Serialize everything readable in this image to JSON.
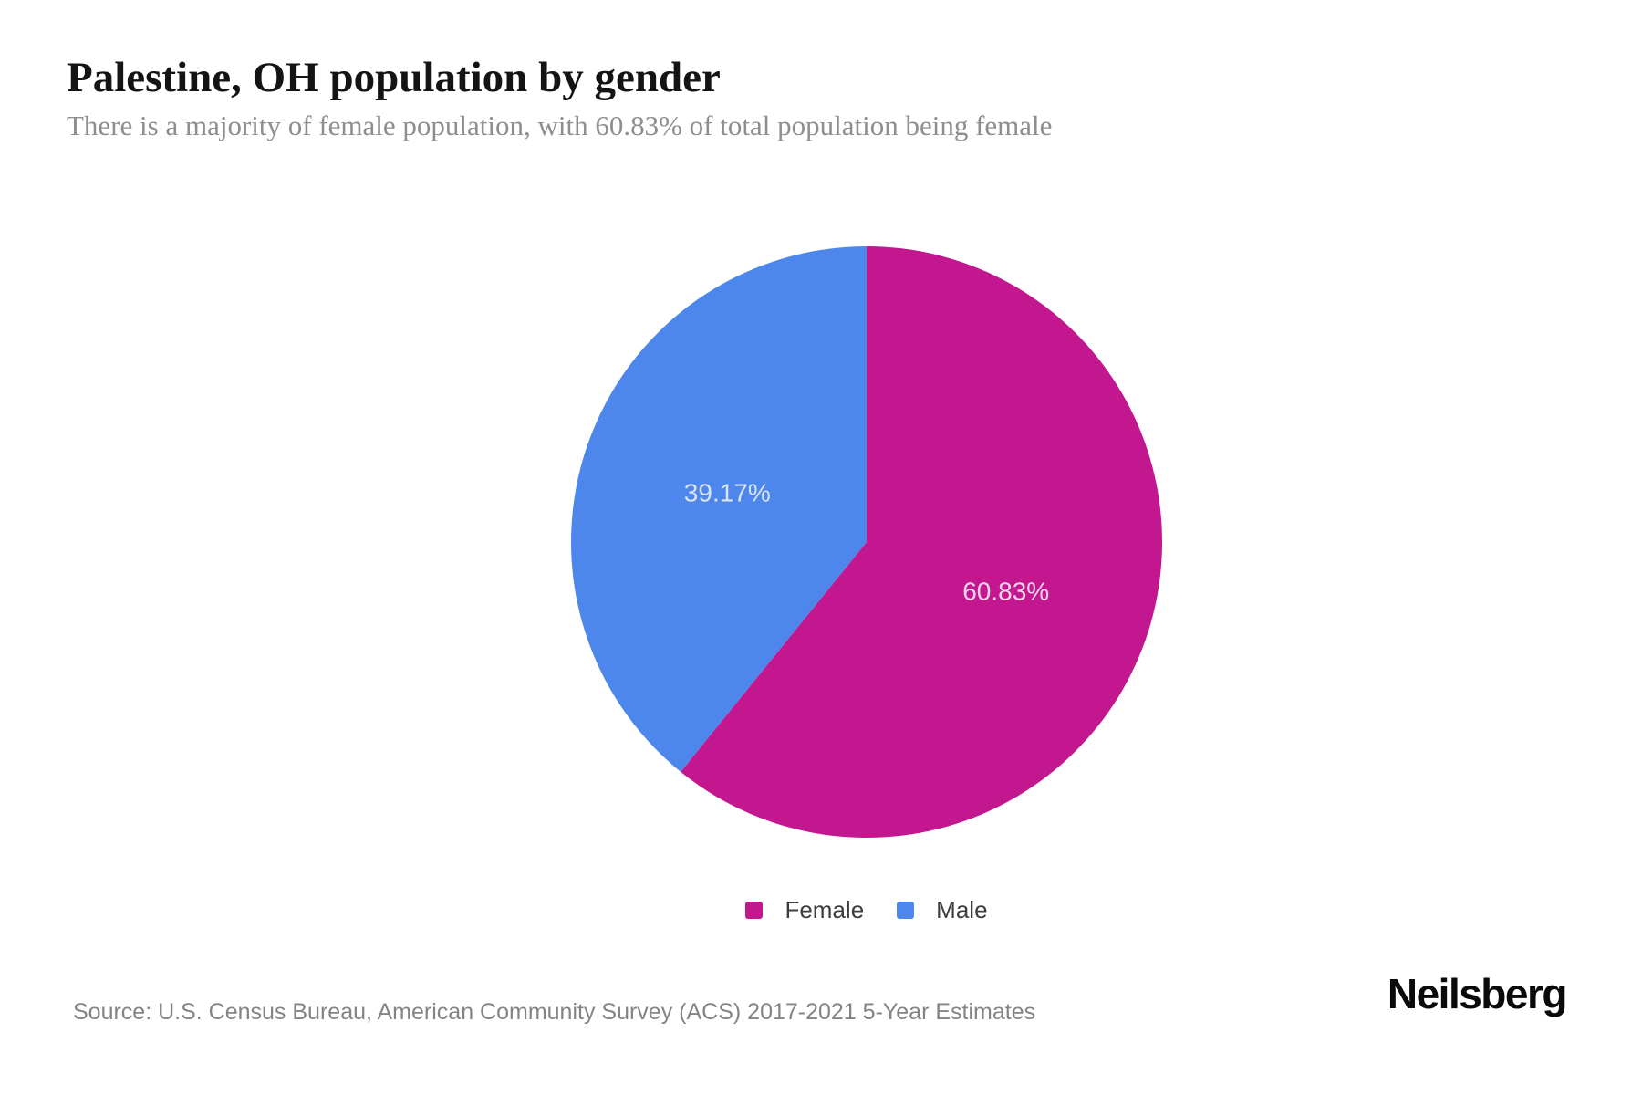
{
  "header": {
    "title": "Palestine, OH population by gender",
    "subtitle": "There is a majority of female population, with 60.83% of total population being female"
  },
  "chart_data": {
    "type": "pie",
    "title": "Palestine, OH population by gender",
    "categories": [
      "Female",
      "Male"
    ],
    "values": [
      60.83,
      39.17
    ],
    "slices": [
      {
        "label": "Female",
        "value": 60.83,
        "display": "60.83%",
        "color": "#c2178f",
        "label_color": "#f2d7ec"
      },
      {
        "label": "Male",
        "value": 39.17,
        "display": "39.17%",
        "color": "#4e87ec",
        "label_color": "#d8e4f8"
      }
    ],
    "start_angle_deg": -90,
    "direction": "clockwise",
    "label_position": "inside",
    "legend_position": "bottom"
  },
  "footer": {
    "source": "Source: U.S. Census Bureau, American Community Survey (ACS) 2017-2021 5-Year Estimates",
    "brand": "Neilsberg"
  }
}
